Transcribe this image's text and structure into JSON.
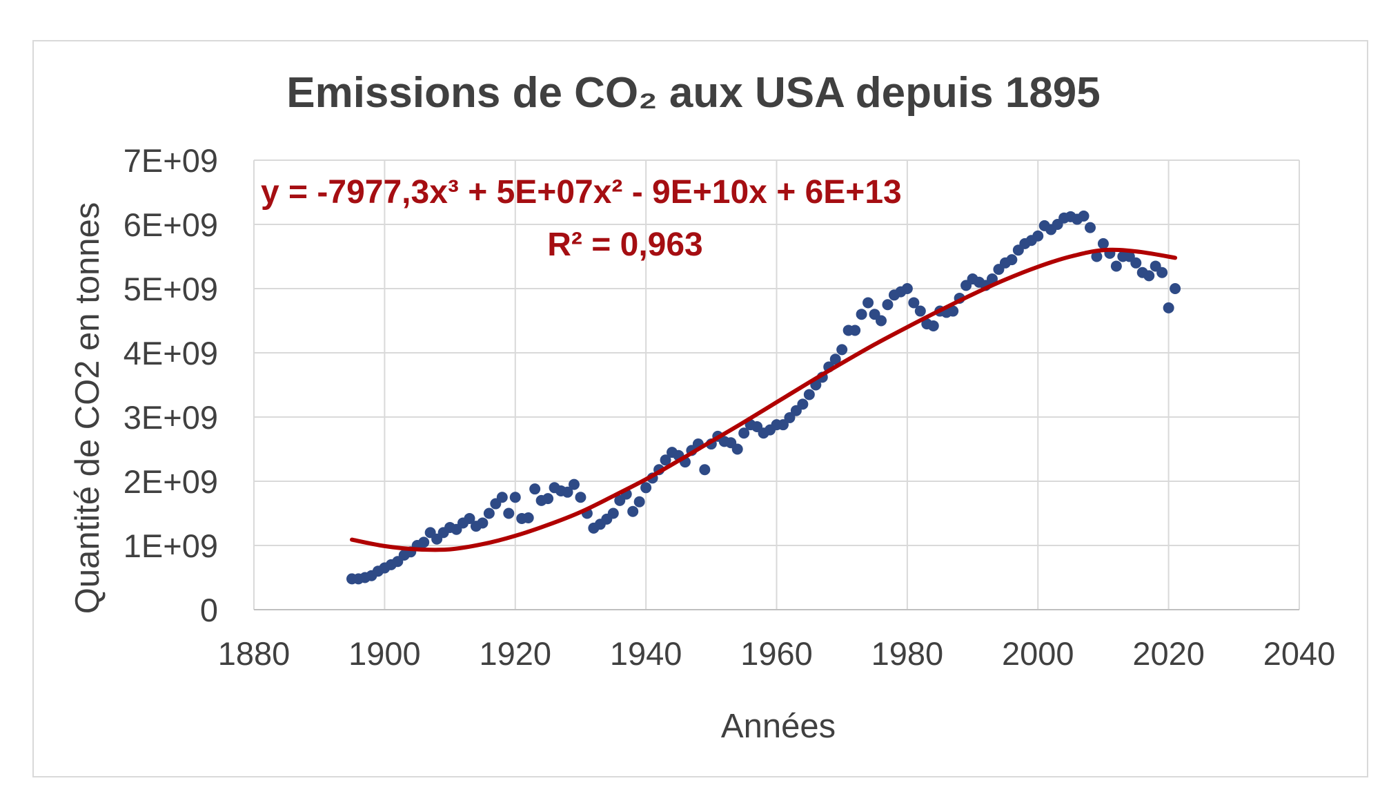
{
  "chart_data": {
    "type": "scatter",
    "title": "Emissions de CO₂ aux USA depuis 1895",
    "xlabel": "Années",
    "ylabel": "Quantité de CO2 en tonnes",
    "xlim": [
      1880,
      2040
    ],
    "ylim": [
      0,
      7000000000
    ],
    "x_ticks": [
      1880,
      1900,
      1920,
      1940,
      1960,
      1980,
      2000,
      2020,
      2040
    ],
    "x_tick_labels": [
      "1880",
      "1900",
      "1920",
      "1940",
      "1960",
      "1980",
      "2000",
      "2020",
      "2040"
    ],
    "y_ticks": [
      0,
      1000000000,
      2000000000,
      3000000000,
      4000000000,
      5000000000,
      6000000000,
      7000000000
    ],
    "y_tick_labels": [
      "0",
      "1E+09",
      "2E+09",
      "3E+09",
      "4E+09",
      "5E+09",
      "6E+09",
      "7E+09"
    ],
    "grid": true,
    "legend": false,
    "colors": {
      "points": "#2e4a86",
      "trendline": "#b00000",
      "grid": "#d9d9d9",
      "text": "#404040"
    },
    "series": [
      {
        "x": [
          1895,
          1896,
          1897,
          1898,
          1899,
          1900,
          1901,
          1902,
          1903,
          1904,
          1905,
          1906,
          1907,
          1908,
          1909,
          1910,
          1911,
          1912,
          1913,
          1914,
          1915,
          1916,
          1917,
          1918,
          1919,
          1920,
          1921,
          1922,
          1923,
          1924,
          1925,
          1926,
          1927,
          1928,
          1929,
          1930,
          1931,
          1932,
          1933,
          1934,
          1935,
          1936,
          1937,
          1938,
          1939,
          1940,
          1941,
          1942,
          1943,
          1944,
          1945,
          1946,
          1947,
          1948,
          1949,
          1950,
          1951,
          1952,
          1953,
          1954,
          1955,
          1956,
          1957,
          1958,
          1959,
          1960,
          1961,
          1962,
          1963,
          1964,
          1965,
          1966,
          1967,
          1968,
          1969,
          1970,
          1971,
          1972,
          1973,
          1974,
          1975,
          1976,
          1977,
          1978,
          1979,
          1980,
          1981,
          1982,
          1983,
          1984,
          1985,
          1986,
          1987,
          1988,
          1989,
          1990,
          1991,
          1992,
          1993,
          1994,
          1995,
          1996,
          1997,
          1998,
          1999,
          2000,
          2001,
          2002,
          2003,
          2004,
          2005,
          2006,
          2007,
          2008,
          2009,
          2010,
          2011,
          2012,
          2013,
          2014,
          2015,
          2016,
          2017,
          2018,
          2019,
          2020,
          2021
        ],
        "y": [
          480000000,
          480000000,
          500000000,
          530000000,
          600000000,
          650000000,
          700000000,
          750000000,
          850000000,
          900000000,
          1000000000,
          1050000000,
          1200000000,
          1100000000,
          1200000000,
          1280000000,
          1250000000,
          1350000000,
          1420000000,
          1300000000,
          1350000000,
          1500000000,
          1650000000,
          1750000000,
          1500000000,
          1750000000,
          1420000000,
          1430000000,
          1880000000,
          1700000000,
          1730000000,
          1900000000,
          1850000000,
          1830000000,
          1950000000,
          1750000000,
          1500000000,
          1270000000,
          1330000000,
          1410000000,
          1500000000,
          1700000000,
          1800000000,
          1530000000,
          1680000000,
          1900000000,
          2050000000,
          2180000000,
          2330000000,
          2450000000,
          2400000000,
          2300000000,
          2480000000,
          2580000000,
          2180000000,
          2580000000,
          2700000000,
          2620000000,
          2600000000,
          2500000000,
          2750000000,
          2880000000,
          2850000000,
          2750000000,
          2800000000,
          2880000000,
          2880000000,
          2990000000,
          3100000000,
          3200000000,
          3350000000,
          3500000000,
          3620000000,
          3780000000,
          3900000000,
          4050000000,
          4350000000,
          4350000000,
          4600000000,
          4780000000,
          4600000000,
          4500000000,
          4750000000,
          4900000000,
          4950000000,
          5000000000,
          4780000000,
          4650000000,
          4450000000,
          4420000000,
          4650000000,
          4630000000,
          4650000000,
          4850000000,
          5050000000,
          5150000000,
          5100000000,
          5050000000,
          5150000000,
          5300000000,
          5400000000,
          5450000000,
          5600000000,
          5700000000,
          5750000000,
          5820000000,
          5980000000,
          5920000000,
          6000000000,
          6100000000,
          6120000000,
          6080000000,
          6130000000,
          5950000000,
          5500000000,
          5700000000,
          5550000000,
          5350000000,
          5500000000,
          5500000000,
          5400000000,
          5250000000,
          5200000000,
          5350000000,
          5250000000,
          4700000000,
          5000000000
        ]
      }
    ],
    "trendline": {
      "type": "polynomial",
      "order": 3,
      "x_range": [
        1895,
        2021
      ],
      "samples": {
        "x": [
          1895,
          1900,
          1905,
          1910,
          1915,
          1920,
          1925,
          1930,
          1935,
          1940,
          1945,
          1950,
          1955,
          1960,
          1965,
          1970,
          1975,
          1980,
          1985,
          1990,
          1995,
          2000,
          2005,
          2010,
          2015,
          2021
        ],
        "y": [
          1090000000,
          990000000,
          940000000,
          940000000,
          1020000000,
          1150000000,
          1320000000,
          1520000000,
          1770000000,
          2030000000,
          2320000000,
          2620000000,
          2920000000,
          3230000000,
          3540000000,
          3840000000,
          4130000000,
          4400000000,
          4660000000,
          4910000000,
          5140000000,
          5340000000,
          5500000000,
          5600000000,
          5580000000,
          5480000000
        ]
      },
      "equation": "y = -7977,3x³ + 5E+07x² - 9E+10x + 6E+13",
      "r2": "R² = 0,963"
    }
  }
}
